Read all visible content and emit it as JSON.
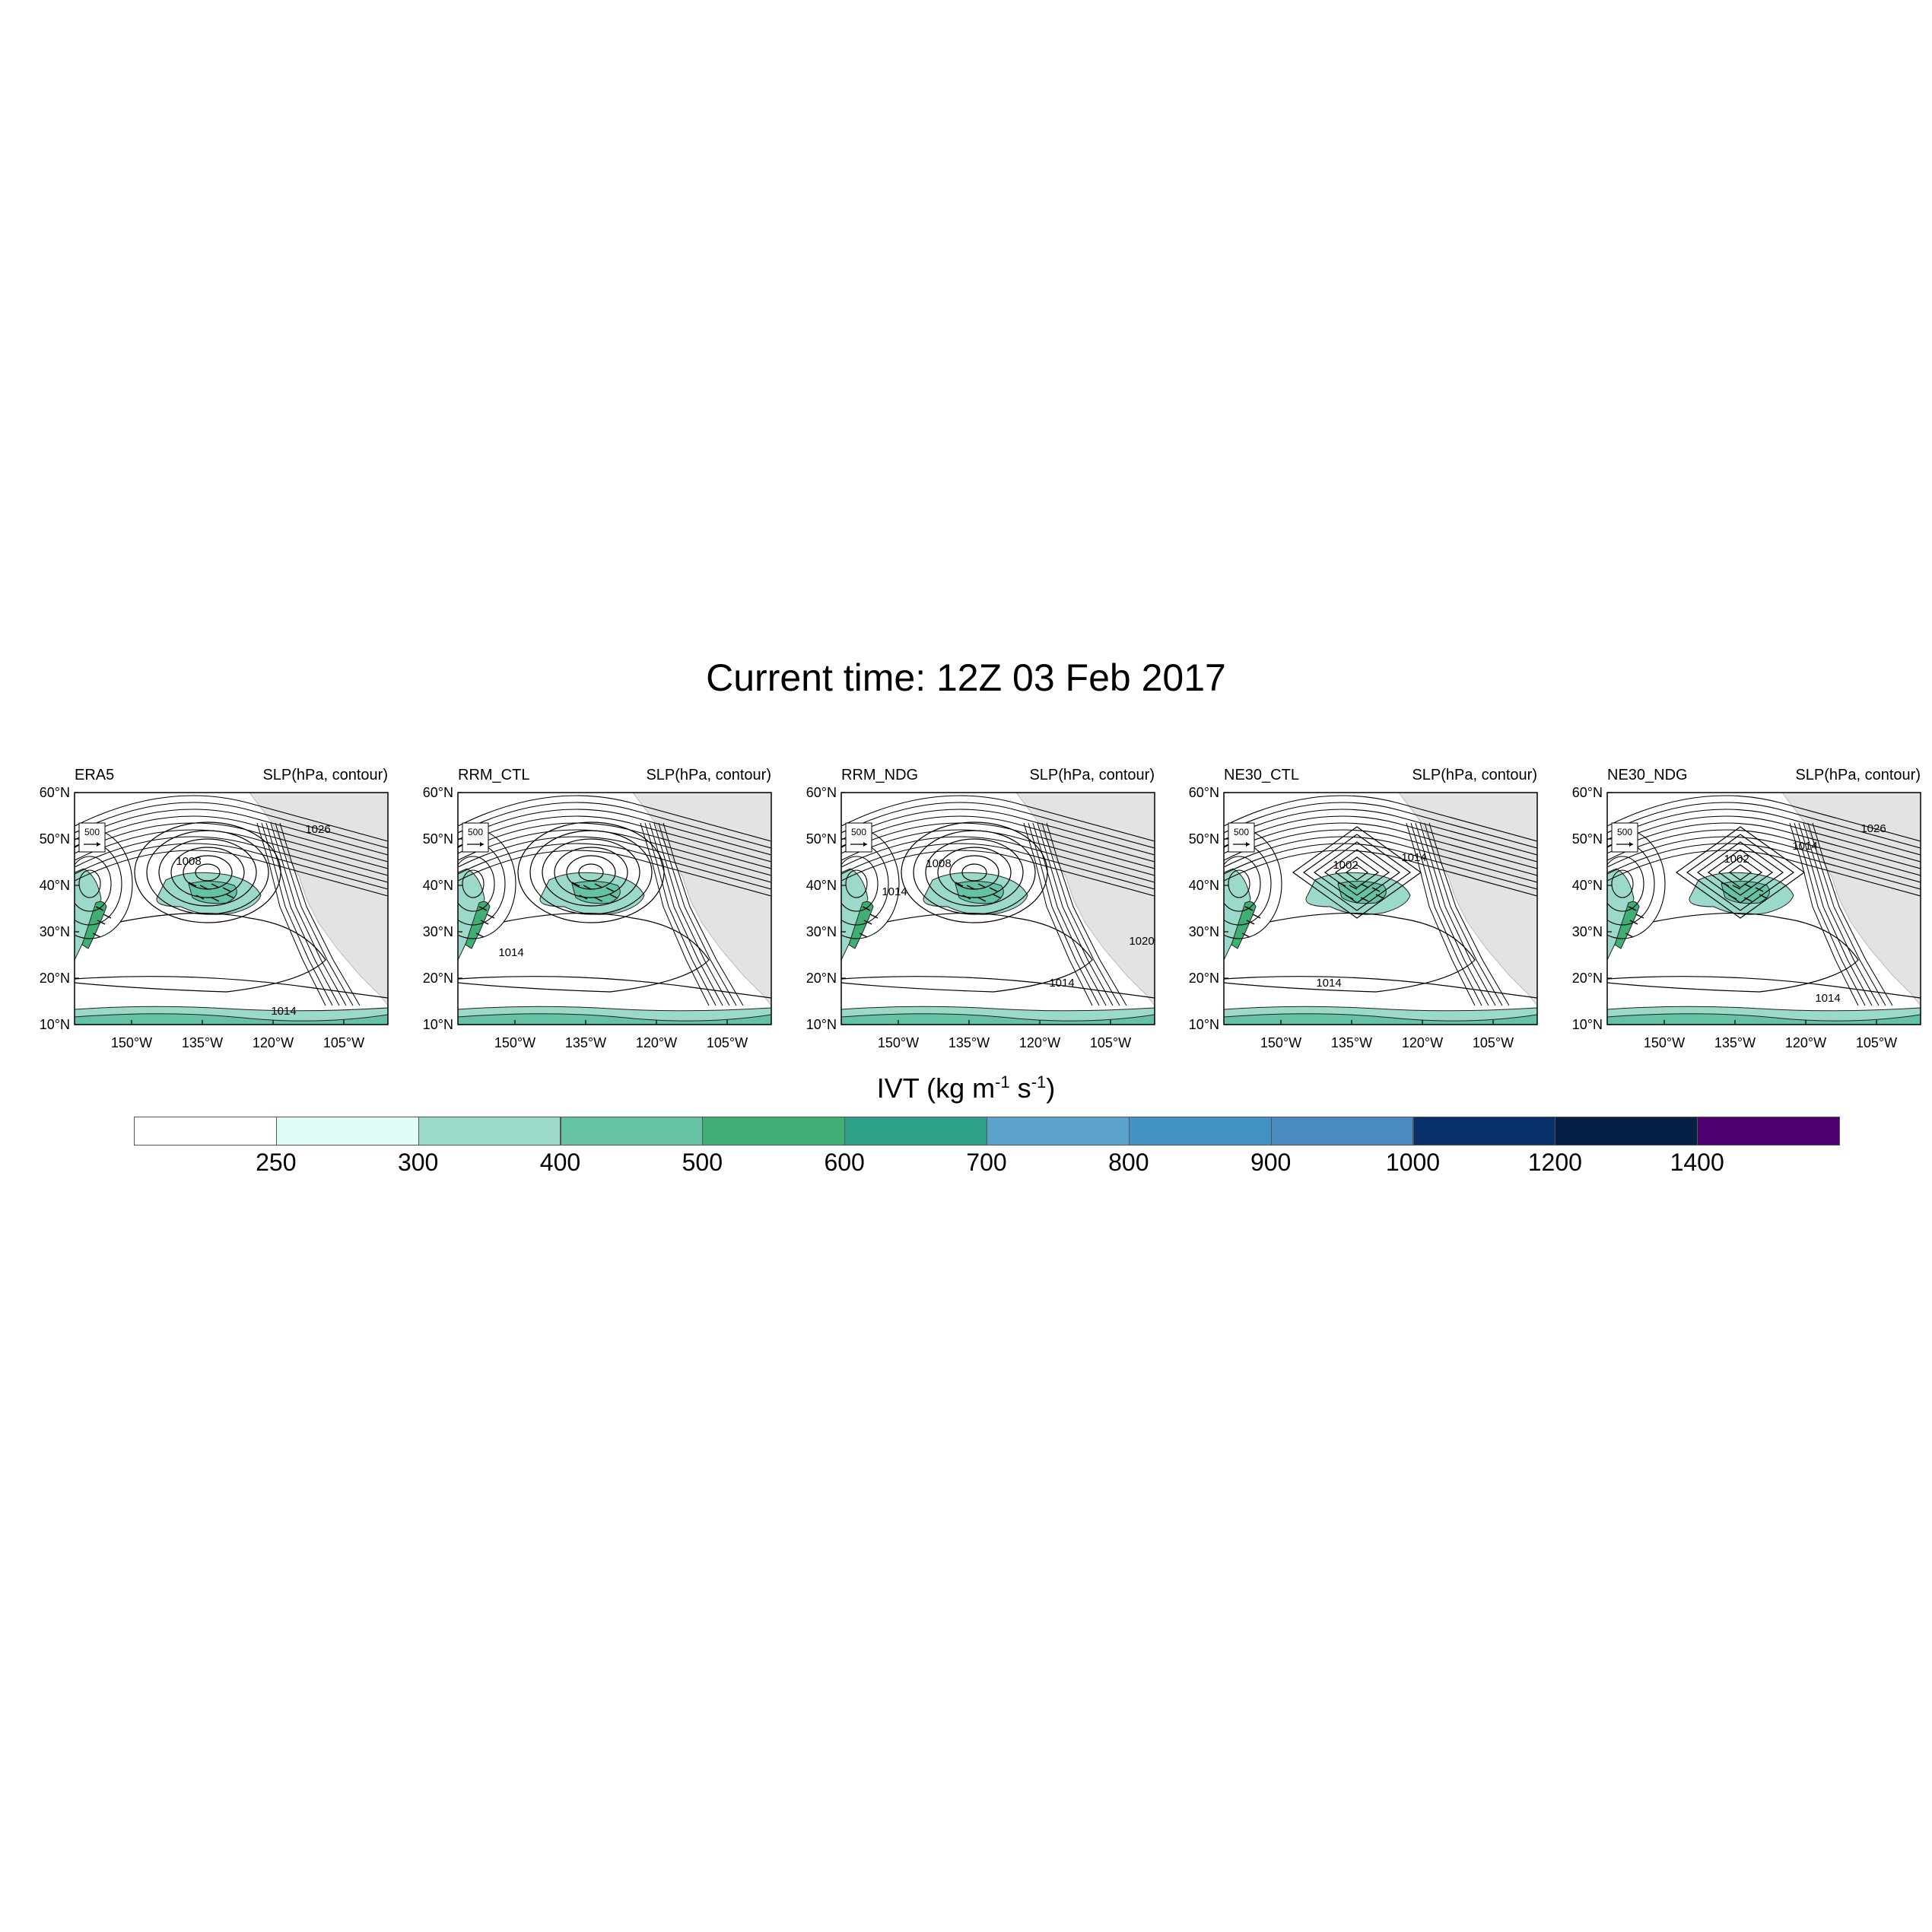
{
  "title": "Current time: 12Z 03 Feb 2017",
  "right_label": "SLP(hPa, contour)",
  "ref_vector": "500",
  "lat_ticks": [
    "60°N",
    "50°N",
    "40°N",
    "30°N",
    "20°N",
    "10°N"
  ],
  "lon_ticks": [
    "150°W",
    "135°W",
    "120°W",
    "105°W"
  ],
  "panels": [
    {
      "name": "ERA5",
      "contour_labels": [
        "1008",
        "1026",
        "1014"
      ]
    },
    {
      "name": "RRM_CTL",
      "contour_labels": [
        "1014"
      ]
    },
    {
      "name": "RRM_NDG",
      "contour_labels": [
        "1008",
        "1014",
        "1014",
        "1020"
      ]
    },
    {
      "name": "NE30_CTL",
      "contour_labels": [
        "1002",
        "1014",
        "1014"
      ]
    },
    {
      "name": "NE30_NDG",
      "contour_labels": [
        "1002",
        "1014",
        "1026",
        "1014"
      ]
    }
  ],
  "colorbar": {
    "title_prefix": "IVT (kg m",
    "title_exp1": "-1",
    "title_mid": " s",
    "title_exp2": "-1",
    "title_suffix": ")",
    "labels": [
      "250",
      "300",
      "400",
      "500",
      "600",
      "700",
      "800",
      "900",
      "1000",
      "1200",
      "1400"
    ],
    "colors": [
      "#ffffff",
      "#e0fcf6",
      "#9bd9ca",
      "#66c2a4",
      "#41ae76",
      "#2ca089",
      "#5ba3cd",
      "#4292c6",
      "#4a8bc2",
      "#08306b",
      "#061f45",
      "#4d006e"
    ]
  }
}
